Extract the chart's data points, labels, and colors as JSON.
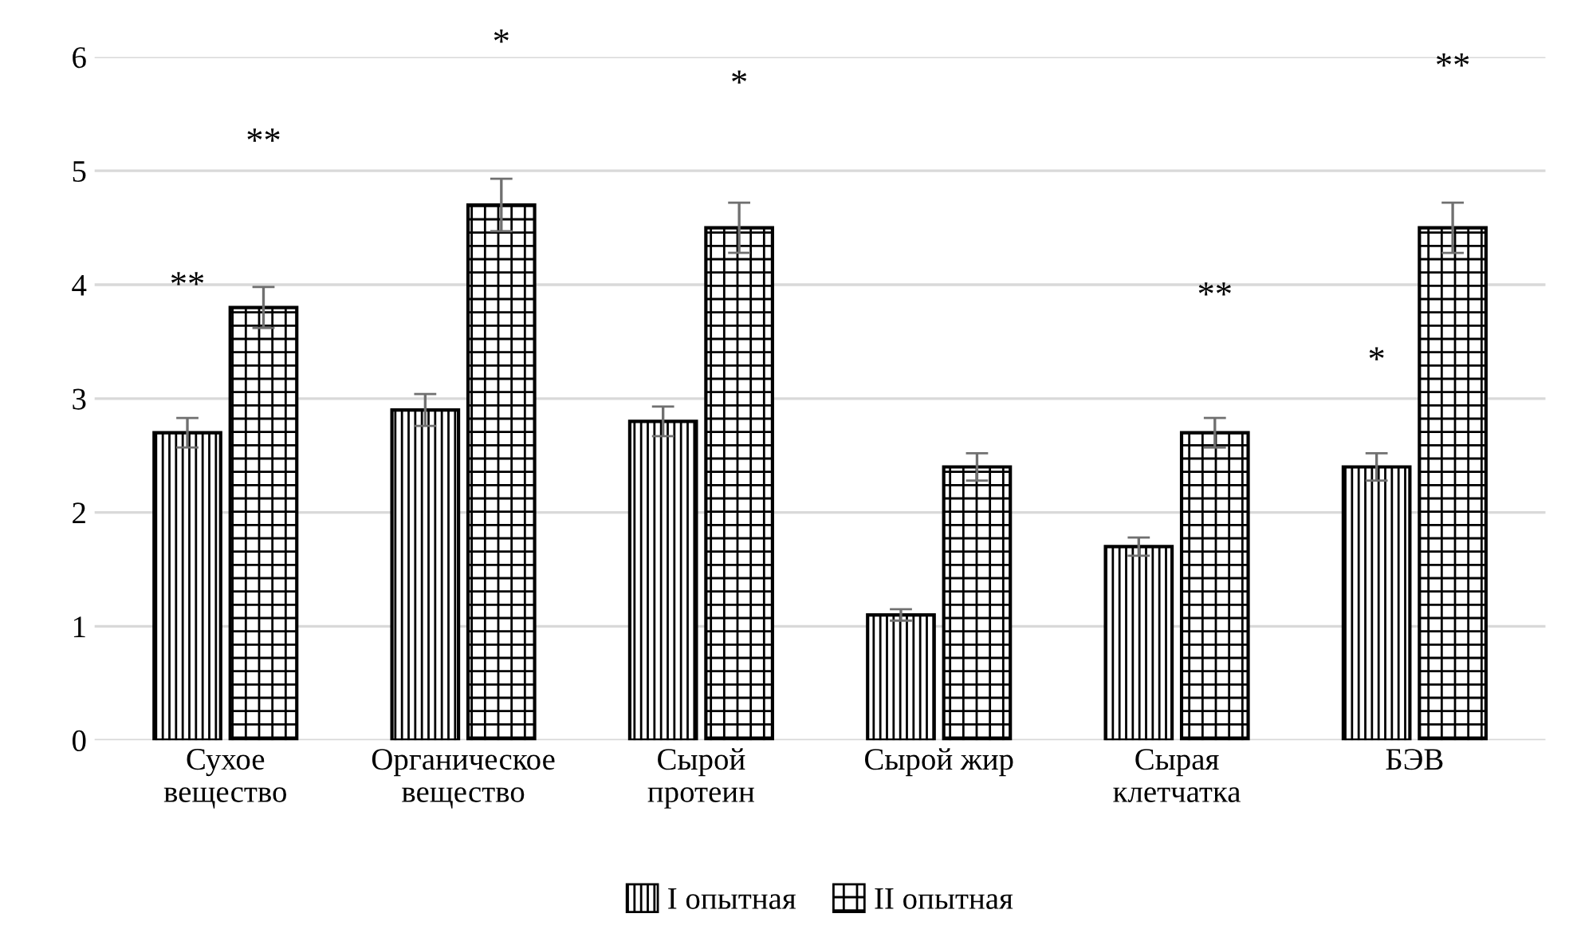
{
  "chart_data": {
    "type": "bar",
    "categories": [
      "Сухое\nвещество",
      "Органическое\nвещество",
      "Сырой\nпротеин",
      "Сырой жир",
      "Сырая\nклетчатка",
      "БЭВ"
    ],
    "series": [
      {
        "name": "I опытная",
        "color": "#000000",
        "values": [
          2.7,
          2.9,
          2.8,
          1.1,
          1.7,
          2.4
        ],
        "errors": [
          0.13,
          0.14,
          0.13,
          0.05,
          0.08,
          0.12
        ]
      },
      {
        "name": "II опытная",
        "color": "#000000",
        "values": [
          3.8,
          4.7,
          4.5,
          2.4,
          2.7,
          4.5
        ],
        "errors": [
          0.18,
          0.23,
          0.22,
          0.12,
          0.13,
          0.22
        ]
      }
    ],
    "ylim": [
      0,
      6
    ],
    "yticks": [
      0,
      1,
      2,
      3,
      4,
      5,
      6
    ],
    "grid": "y",
    "legend": "bottom",
    "annotations": [
      "**",
      "**",
      "*",
      "*",
      "**",
      "*",
      "**"
    ]
  }
}
